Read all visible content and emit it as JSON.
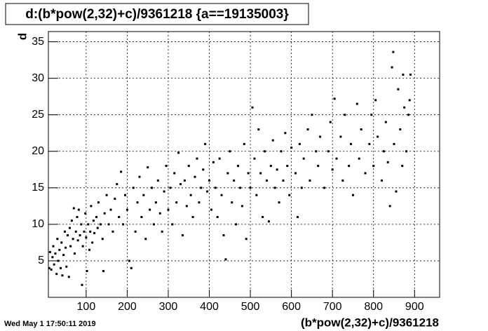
{
  "chart_data": {
    "type": "scatter",
    "title": "d:(b*pow(2,32)+c)/9361218 {a==19135003}",
    "x_label": "(b*pow(2,32)+c)/9361218",
    "y_label": "d",
    "timestamp": "Wed May  1 17:50:11 2019",
    "color": "#000000",
    "grid": true,
    "xlim": [
      8,
      961
    ],
    "ylim": [
      0,
      36.4
    ],
    "xticks": [
      100,
      200,
      300,
      400,
      500,
      600,
      700,
      800,
      900
    ],
    "yticks": [
      5,
      10,
      15,
      20,
      25,
      30,
      35
    ],
    "x": [
      10,
      12,
      15,
      18,
      20,
      22,
      25,
      28,
      30,
      32,
      35,
      38,
      40,
      42,
      45,
      48,
      50,
      52,
      55,
      58,
      60,
      62,
      65,
      68,
      70,
      72,
      75,
      78,
      80,
      82,
      85,
      88,
      90,
      92,
      95,
      98,
      100,
      102,
      105,
      108,
      110,
      112,
      115,
      118,
      120,
      125,
      128,
      130,
      135,
      140,
      142,
      145,
      150,
      155,
      160,
      165,
      170,
      175,
      180,
      185,
      190,
      195,
      200,
      205,
      210,
      215,
      220,
      225,
      230,
      235,
      240,
      245,
      250,
      255,
      260,
      265,
      270,
      275,
      280,
      285,
      290,
      295,
      300,
      305,
      310,
      315,
      320,
      325,
      330,
      335,
      340,
      345,
      350,
      355,
      360,
      365,
      370,
      375,
      380,
      385,
      390,
      395,
      400,
      405,
      410,
      415,
      420,
      425,
      430,
      435,
      440,
      445,
      450,
      455,
      460,
      465,
      470,
      475,
      480,
      485,
      490,
      495,
      500,
      505,
      510,
      515,
      520,
      525,
      530,
      535,
      540,
      545,
      550,
      555,
      560,
      565,
      570,
      575,
      580,
      585,
      590,
      595,
      600,
      610,
      615,
      620,
      625,
      630,
      640,
      645,
      650,
      660,
      665,
      670,
      680,
      690,
      695,
      700,
      705,
      710,
      720,
      725,
      730,
      740,
      745,
      750,
      760,
      765,
      770,
      780,
      790,
      795,
      800,
      805,
      810,
      820,
      825,
      830,
      835,
      840,
      845,
      848,
      850,
      855,
      860,
      865,
      870,
      872,
      875,
      880,
      885,
      888,
      890
    ],
    "values": [
      4,
      6.2,
      3.8,
      5.5,
      7,
      4.5,
      6,
      3.2,
      8,
      5,
      6.5,
      4,
      7.5,
      3,
      5.8,
      9,
      6.8,
      4.2,
      8.5,
      2.8,
      9.5,
      7,
      10.5,
      8,
      12.2,
      6,
      9,
      11,
      7.8,
      12,
      8.5,
      10,
      1.7,
      7,
      9,
      11.5,
      8.2,
      3.6,
      10,
      6.5,
      9,
      12.5,
      7.5,
      10.5,
      8.8,
      11,
      9.5,
      13,
      10,
      8,
      3.6,
      11.5,
      14,
      10,
      12,
      9,
      13.5,
      15.5,
      11,
      17.2,
      10,
      14,
      12,
      5,
      4,
      15,
      9,
      13,
      16.5,
      11,
      14,
      8,
      17.8,
      12,
      15,
      10,
      13,
      16,
      11.5,
      9,
      14.5,
      18,
      12,
      15,
      10,
      17,
      13,
      19.8,
      15.5,
      8.5,
      16,
      12.5,
      18,
      14,
      11,
      16.5,
      19,
      13,
      15,
      17.5,
      21,
      14.5,
      16,
      12,
      18.5,
      15,
      11,
      19,
      14,
      8.5,
      5.2,
      17,
      20,
      13,
      16,
      10,
      18,
      15,
      12.5,
      21,
      8,
      17,
      15,
      26,
      19,
      14,
      23,
      17,
      11,
      20,
      16,
      10.4,
      18,
      21.5,
      15,
      17.5,
      13,
      20,
      16,
      22.5,
      18,
      14,
      20.5,
      17,
      11,
      21,
      15,
      19,
      23,
      16,
      25,
      20,
      18,
      22,
      15,
      20,
      24,
      17.5,
      27.2,
      19,
      22,
      16,
      25,
      18,
      21,
      14,
      26.5,
      19,
      23,
      17,
      21,
      25,
      18,
      27,
      22,
      16,
      20,
      24,
      18.5,
      12.5,
      31.5,
      33.6,
      21,
      14.5,
      28.5,
      23,
      18,
      30.5,
      26,
      20,
      25,
      27,
      30.5
    ]
  }
}
